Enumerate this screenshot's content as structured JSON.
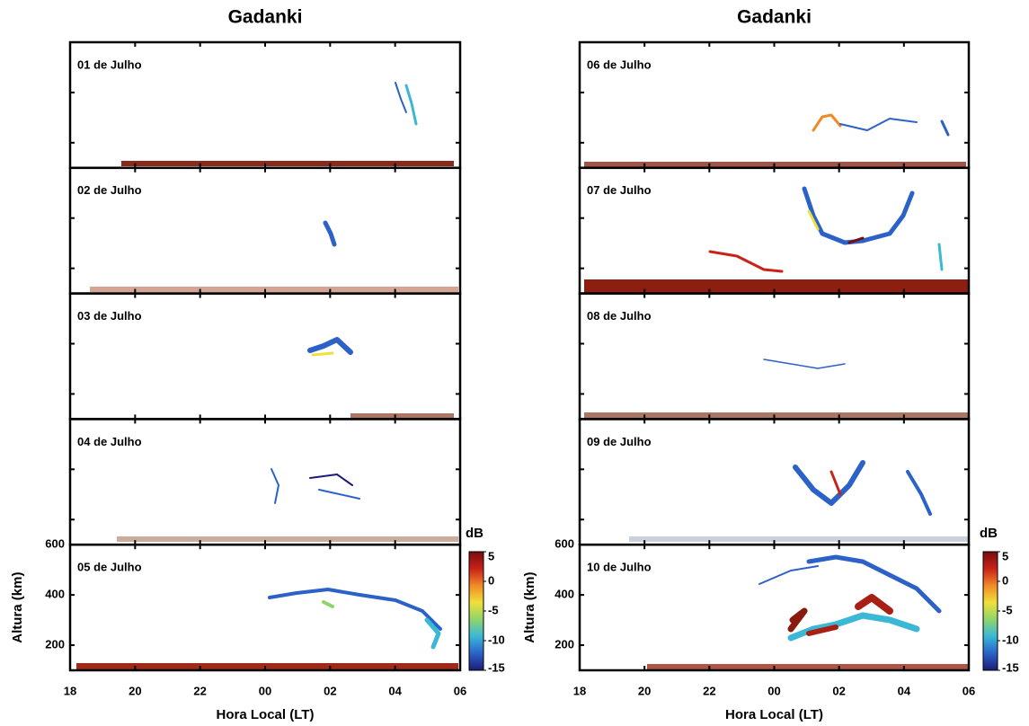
{
  "chart_data": [
    {
      "type": "rti",
      "title": "Gadanki",
      "xlabel": "Hora Local (LT)",
      "ylabel": "Altura (km)",
      "xlim": [
        18,
        30
      ],
      "xticks": [
        18,
        20,
        22,
        {
          "value": 24,
          "label": "00"
        },
        {
          "value": 26,
          "label": "02"
        },
        {
          "value": 28,
          "label": "04"
        },
        {
          "value": 30,
          "label": "06"
        }
      ],
      "ylim": [
        100,
        600
      ],
      "yticks": [
        200,
        400,
        600
      ],
      "panels": [
        "01 de Julho",
        "02 de Julho",
        "03 de Julho",
        "04 de Julho",
        "05 de Julho"
      ],
      "colorbar": {
        "label": "dB",
        "lim": [
          -15,
          5
        ],
        "ticks": [
          5,
          0,
          -5,
          -10,
          -15
        ],
        "colors": [
          "#1c1c78",
          "#2c62c8",
          "#3ab8d6",
          "#8fd46c",
          "#f0e03a",
          "#f08a26",
          "#c8221a",
          "#760c0c"
        ]
      }
    },
    {
      "type": "rti",
      "title": "Gadanki",
      "xlabel": "Hora Local (LT)",
      "ylabel": "Altura (km)",
      "xlim": [
        18,
        30
      ],
      "xticks": [
        18,
        20,
        22,
        {
          "value": 24,
          "label": "00"
        },
        {
          "value": 26,
          "label": "02"
        },
        {
          "value": 28,
          "label": "04"
        },
        {
          "value": 30,
          "label": "06"
        }
      ],
      "ylim": [
        100,
        600
      ],
      "yticks": [
        200,
        400,
        600
      ],
      "panels": [
        "06 de Julho",
        "07 de Julho",
        "08 de Julho",
        "09 de Julho",
        "10 de Julho"
      ],
      "colorbar": {
        "label": "dB",
        "lim": [
          -15,
          5
        ],
        "ticks": [
          5,
          0,
          -5,
          -10,
          -15
        ],
        "colors": [
          "#1c1c78",
          "#2c62c8",
          "#3ab8d6",
          "#8fd46c",
          "#f0e03a",
          "#f08a26",
          "#c8221a",
          "#760c0c"
        ]
      }
    }
  ]
}
